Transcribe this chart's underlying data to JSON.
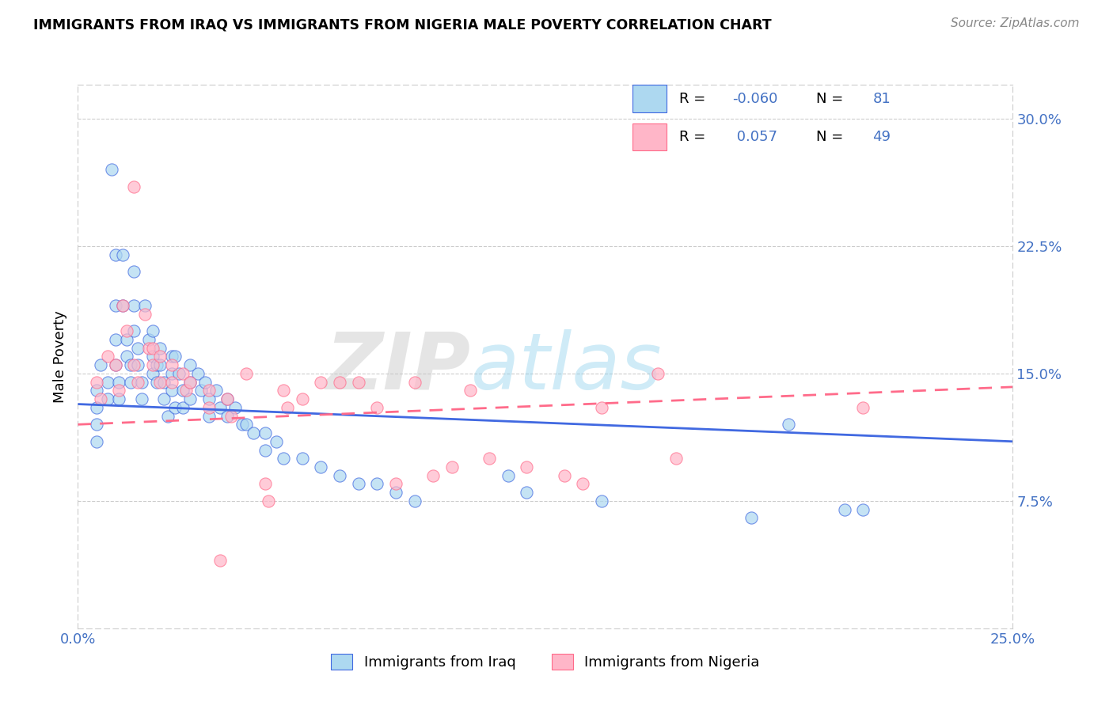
{
  "title": "IMMIGRANTS FROM IRAQ VS IMMIGRANTS FROM NIGERIA MALE POVERTY CORRELATION CHART",
  "source": "Source: ZipAtlas.com",
  "ylabel": "Male Poverty",
  "ytick_labels": [
    "7.5%",
    "15.0%",
    "22.5%",
    "30.0%"
  ],
  "ytick_values": [
    7.5,
    15.0,
    22.5,
    30.0
  ],
  "xlim": [
    0.0,
    25.0
  ],
  "ylim": [
    0.0,
    32.0
  ],
  "iraq_color": "#ADD8F0",
  "nigeria_color": "#FFB6C8",
  "iraq_line_color": "#4169E1",
  "nigeria_line_color": "#FF6B8A",
  "iraq_R": -0.06,
  "iraq_N": 81,
  "nigeria_R": 0.057,
  "nigeria_N": 49,
  "legend_label_iraq": "Immigrants from Iraq",
  "legend_label_nigeria": "Immigrants from Nigeria",
  "iraq_trend_x": [
    0.0,
    25.0
  ],
  "iraq_trend_y": [
    13.2,
    11.0
  ],
  "nigeria_trend_x": [
    0.0,
    25.0
  ],
  "nigeria_trend_y": [
    12.0,
    14.5
  ],
  "iraq_scatter_x": [
    0.5,
    0.5,
    0.5,
    0.5,
    0.6,
    0.8,
    0.8,
    0.9,
    1.0,
    1.0,
    1.0,
    1.0,
    1.1,
    1.1,
    1.2,
    1.2,
    1.3,
    1.3,
    1.4,
    1.4,
    1.5,
    1.5,
    1.5,
    1.6,
    1.6,
    1.7,
    1.7,
    1.8,
    1.9,
    2.0,
    2.0,
    2.0,
    2.1,
    2.1,
    2.2,
    2.2,
    2.3,
    2.3,
    2.4,
    2.5,
    2.5,
    2.5,
    2.6,
    2.6,
    2.7,
    2.8,
    2.8,
    3.0,
    3.0,
    3.0,
    3.2,
    3.3,
    3.4,
    3.5,
    3.5,
    3.7,
    3.8,
    4.0,
    4.0,
    4.2,
    4.4,
    4.5,
    4.7,
    5.0,
    5.0,
    5.3,
    5.5,
    6.0,
    6.5,
    7.0,
    7.5,
    8.0,
    8.5,
    9.0,
    11.5,
    12.0,
    14.0,
    18.0,
    19.0,
    20.5,
    21.0
  ],
  "iraq_scatter_y": [
    14.0,
    13.0,
    12.0,
    11.0,
    15.5,
    14.5,
    13.5,
    27.0,
    22.0,
    19.0,
    17.0,
    15.5,
    14.5,
    13.5,
    22.0,
    19.0,
    17.0,
    16.0,
    15.5,
    14.5,
    21.0,
    19.0,
    17.5,
    16.5,
    15.5,
    14.5,
    13.5,
    19.0,
    17.0,
    17.5,
    16.0,
    15.0,
    15.5,
    14.5,
    16.5,
    15.5,
    14.5,
    13.5,
    12.5,
    16.0,
    15.0,
    14.0,
    13.0,
    16.0,
    15.0,
    14.0,
    13.0,
    15.5,
    14.5,
    13.5,
    15.0,
    14.0,
    14.5,
    13.5,
    12.5,
    14.0,
    13.0,
    13.5,
    12.5,
    13.0,
    12.0,
    12.0,
    11.5,
    11.5,
    10.5,
    11.0,
    10.0,
    10.0,
    9.5,
    9.0,
    8.5,
    8.5,
    8.0,
    7.5,
    9.0,
    8.0,
    7.5,
    6.5,
    12.0,
    7.0,
    7.0
  ],
  "nigeria_scatter_x": [
    0.5,
    0.6,
    0.8,
    1.0,
    1.1,
    1.2,
    1.3,
    1.5,
    1.5,
    1.6,
    1.8,
    1.9,
    2.0,
    2.0,
    2.2,
    2.2,
    2.5,
    2.5,
    2.8,
    2.9,
    3.0,
    3.5,
    3.5,
    3.8,
    4.0,
    4.1,
    4.5,
    5.0,
    5.1,
    5.5,
    5.6,
    6.0,
    6.5,
    7.0,
    7.5,
    8.0,
    8.5,
    9.0,
    9.5,
    10.0,
    10.5,
    11.0,
    12.0,
    13.0,
    13.5,
    14.0,
    15.5,
    16.0,
    21.0
  ],
  "nigeria_scatter_y": [
    14.5,
    13.5,
    16.0,
    15.5,
    14.0,
    19.0,
    17.5,
    26.0,
    15.5,
    14.5,
    18.5,
    16.5,
    16.5,
    15.5,
    16.0,
    14.5,
    15.5,
    14.5,
    15.0,
    14.0,
    14.5,
    14.0,
    13.0,
    4.0,
    13.5,
    12.5,
    15.0,
    8.5,
    7.5,
    14.0,
    13.0,
    13.5,
    14.5,
    14.5,
    14.5,
    13.0,
    8.5,
    14.5,
    9.0,
    9.5,
    14.0,
    10.0,
    9.5,
    9.0,
    8.5,
    13.0,
    15.0,
    10.0,
    13.0
  ],
  "watermark_zip": "ZIP",
  "watermark_atlas": "atlas",
  "background_color": "#FFFFFF",
  "grid_color": "#CCCCCC"
}
